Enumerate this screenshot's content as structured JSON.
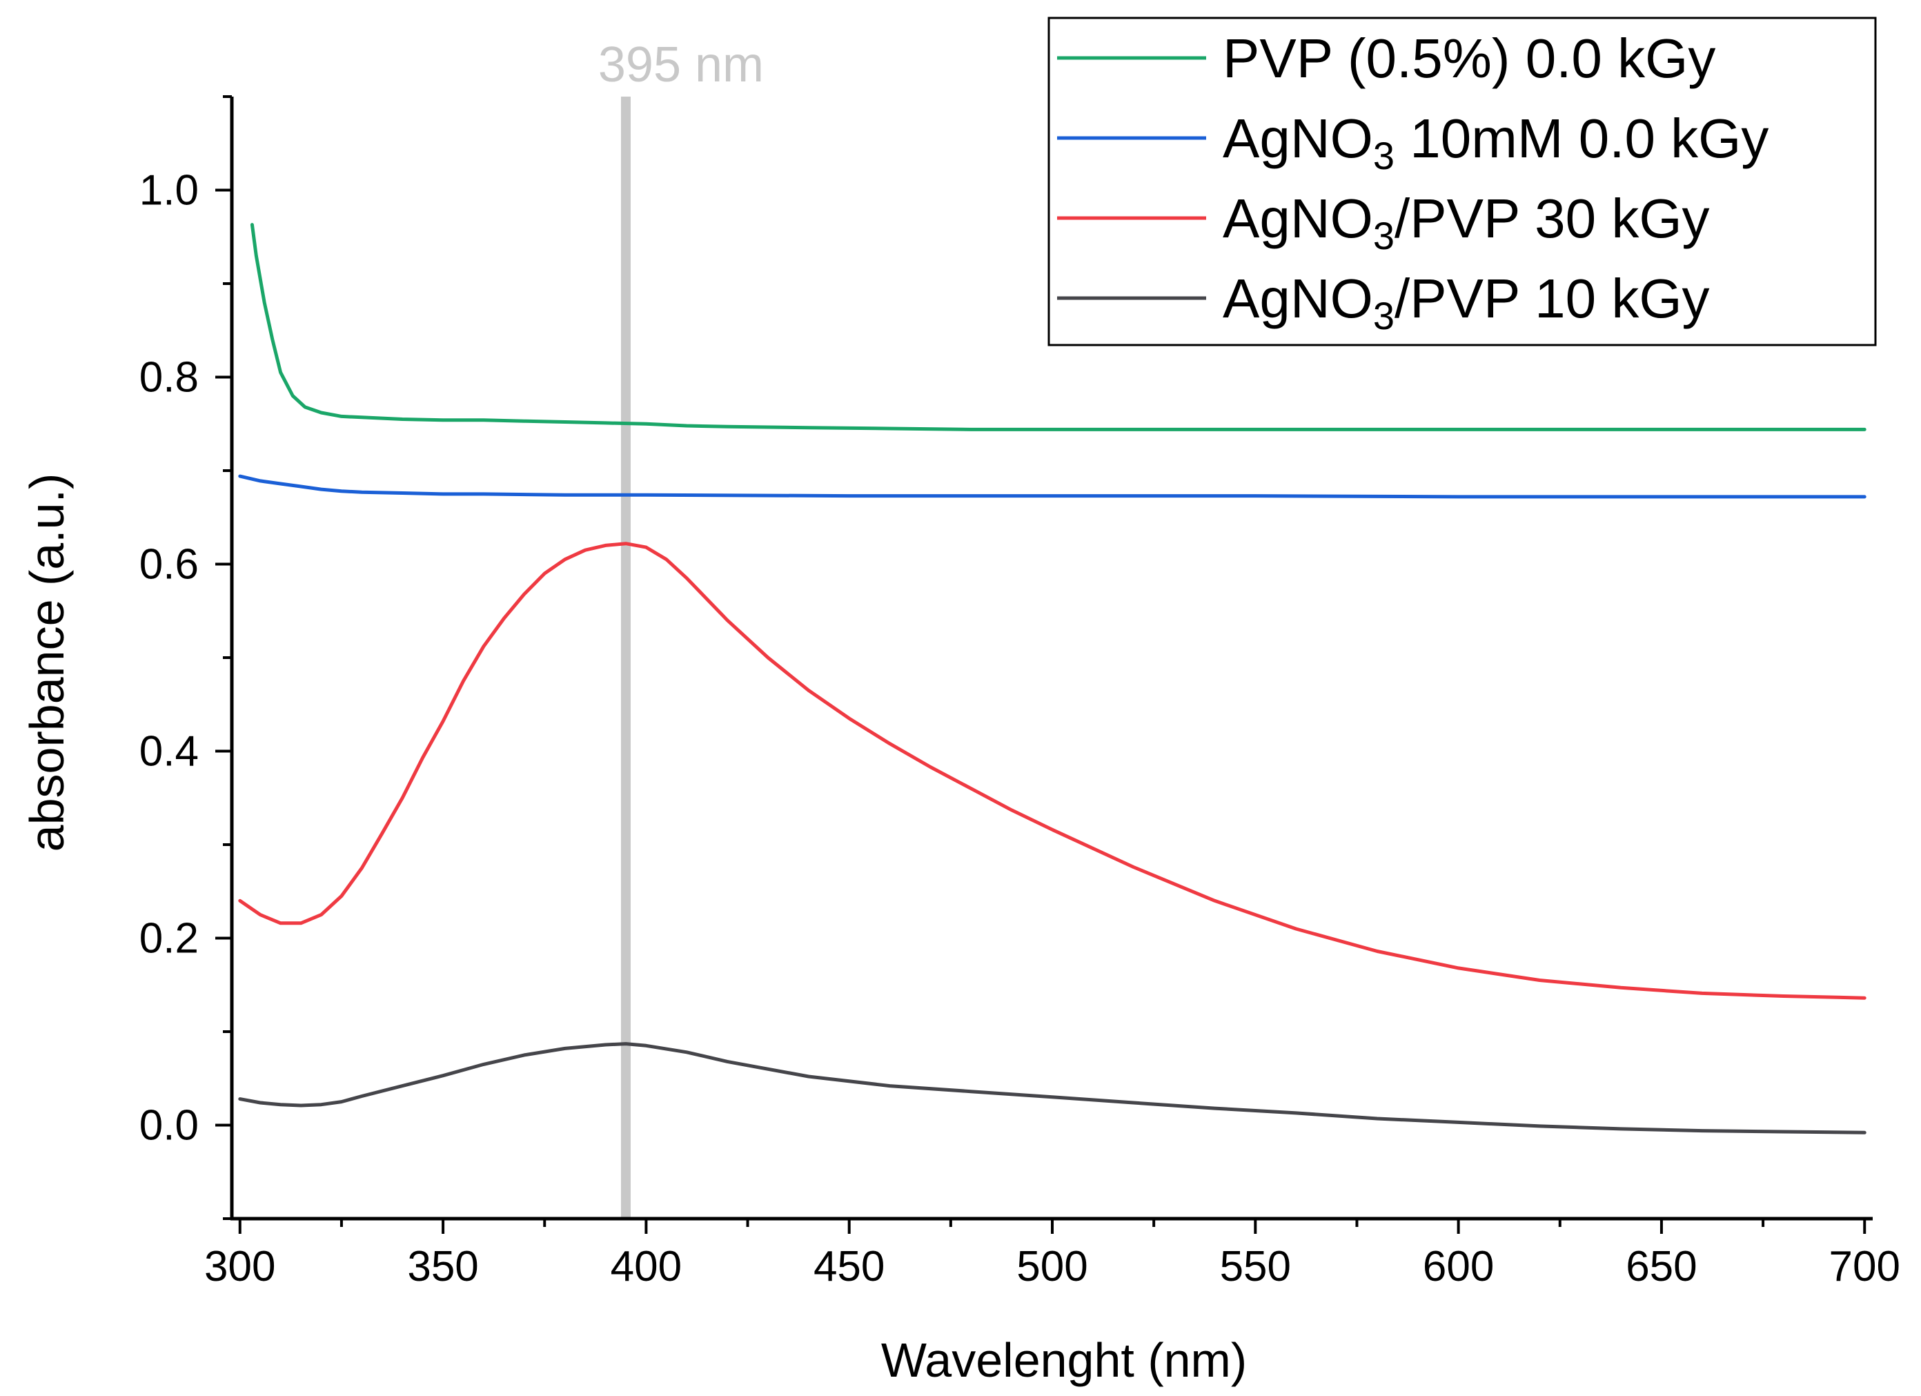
{
  "chart_data": {
    "type": "line",
    "xlabel": "Wavelenght (nm)",
    "ylabel": "absorbance (a.u.)",
    "xlim": [
      298,
      702
    ],
    "ylim": [
      -0.1,
      1.1
    ],
    "x_ticks": [
      300,
      350,
      400,
      450,
      500,
      550,
      600,
      650,
      700
    ],
    "x_tick_labels": [
      "300",
      "350",
      "400",
      "450",
      "500",
      "550",
      "600",
      "650",
      "700"
    ],
    "y_ticks": [
      0.0,
      0.2,
      0.4,
      0.6,
      0.8,
      1.0
    ],
    "y_tick_labels": [
      "0.0",
      "0.2",
      "0.4",
      "0.6",
      "0.8",
      "1.0"
    ],
    "grid": false,
    "legend_position": "top-right",
    "reference_line": {
      "x": 395,
      "label": "395 nm",
      "color": "#c8c8c8"
    },
    "series": [
      {
        "name": "PVP (0.5%) 0.0 kGy",
        "legend_parts": [
          {
            "t": "PVP (0.5%) 0.0 kGy",
            "sub": false
          }
        ],
        "color": "#1aa668",
        "x": [
          303,
          304,
          306,
          308,
          310,
          313,
          316,
          320,
          325,
          330,
          340,
          350,
          360,
          370,
          380,
          390,
          400,
          410,
          420,
          440,
          460,
          480,
          500,
          550,
          600,
          650,
          700
        ],
        "y": [
          0.963,
          0.93,
          0.88,
          0.84,
          0.805,
          0.78,
          0.768,
          0.762,
          0.758,
          0.757,
          0.755,
          0.754,
          0.754,
          0.753,
          0.752,
          0.751,
          0.75,
          0.748,
          0.747,
          0.746,
          0.745,
          0.744,
          0.744,
          0.744,
          0.744,
          0.744,
          0.744
        ]
      },
      {
        "name": "AgNO3 10mM 0.0 kGy",
        "legend_parts": [
          {
            "t": "AgNO",
            "sub": false
          },
          {
            "t": "3",
            "sub": true
          },
          {
            "t": " 10mM 0.0 kGy",
            "sub": false
          }
        ],
        "color": "#1a5fd6",
        "x": [
          300,
          305,
          310,
          315,
          320,
          325,
          330,
          340,
          350,
          360,
          380,
          400,
          450,
          500,
          550,
          600,
          650,
          700
        ],
        "y": [
          0.694,
          0.689,
          0.686,
          0.683,
          0.68,
          0.678,
          0.677,
          0.676,
          0.675,
          0.675,
          0.674,
          0.674,
          0.673,
          0.673,
          0.673,
          0.672,
          0.672,
          0.672
        ]
      },
      {
        "name": "AgNO3/PVP 30 kGy",
        "legend_parts": [
          {
            "t": "AgNO",
            "sub": false
          },
          {
            "t": "3",
            "sub": true
          },
          {
            "t": "/PVP 30 kGy",
            "sub": false
          }
        ],
        "color": "#ef3a42",
        "x": [
          300,
          305,
          310,
          315,
          320,
          325,
          330,
          335,
          340,
          345,
          350,
          355,
          360,
          365,
          370,
          375,
          380,
          385,
          390,
          395,
          400,
          405,
          410,
          420,
          430,
          440,
          450,
          460,
          470,
          480,
          490,
          500,
          520,
          540,
          560,
          580,
          600,
          620,
          640,
          660,
          680,
          700
        ],
        "y": [
          0.24,
          0.225,
          0.216,
          0.216,
          0.225,
          0.245,
          0.275,
          0.312,
          0.35,
          0.393,
          0.432,
          0.475,
          0.512,
          0.542,
          0.568,
          0.59,
          0.605,
          0.615,
          0.62,
          0.622,
          0.618,
          0.605,
          0.585,
          0.54,
          0.5,
          0.465,
          0.435,
          0.408,
          0.383,
          0.36,
          0.337,
          0.316,
          0.276,
          0.24,
          0.21,
          0.186,
          0.168,
          0.155,
          0.147,
          0.141,
          0.138,
          0.136
        ]
      },
      {
        "name": "AgNO3/PVP 10 kGy",
        "legend_parts": [
          {
            "t": "AgNO",
            "sub": false
          },
          {
            "t": "3",
            "sub": true
          },
          {
            "t": "/PVP 10 kGy",
            "sub": false
          }
        ],
        "color": "#45454a",
        "x": [
          300,
          305,
          310,
          315,
          320,
          325,
          330,
          340,
          350,
          360,
          370,
          380,
          390,
          395,
          400,
          410,
          420,
          440,
          460,
          480,
          500,
          520,
          540,
          560,
          580,
          600,
          620,
          640,
          660,
          680,
          700
        ],
        "y": [
          0.028,
          0.024,
          0.022,
          0.021,
          0.022,
          0.025,
          0.031,
          0.042,
          0.053,
          0.065,
          0.075,
          0.082,
          0.086,
          0.087,
          0.085,
          0.078,
          0.068,
          0.052,
          0.042,
          0.036,
          0.03,
          0.024,
          0.018,
          0.013,
          0.007,
          0.003,
          -0.001,
          -0.004,
          -0.006,
          -0.007,
          -0.008
        ]
      }
    ]
  }
}
